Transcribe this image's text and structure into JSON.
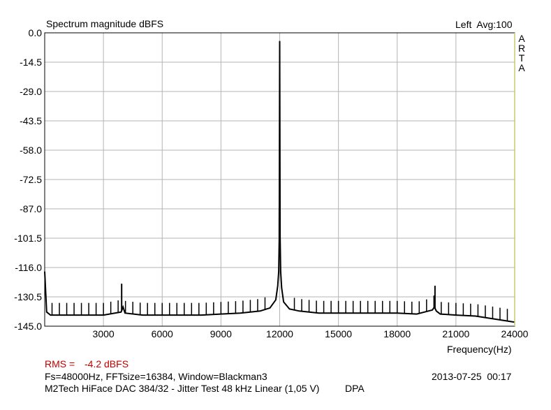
{
  "header": {
    "title": "Spectrum magnitude dBFS",
    "channel_info": "Left  Avg:100"
  },
  "brand": {
    "letters": [
      "A",
      "R",
      "T",
      "A"
    ]
  },
  "footer": {
    "rms_label": "RMS =",
    "rms_value": "-4.2 dBFS",
    "settings": "Fs=48000Hz, FFTsize=16384, Window=Blackman3",
    "datetime": "2013-07-25  00:17",
    "description": "M2Tech HiFace DAC 384/32 - Jitter Test 48 kHz Linear (1,05 V)",
    "tag": "DPA"
  },
  "colors": {
    "grid": "#b4b4b4",
    "trace": "#000000",
    "frame_right": "#c8c86e",
    "rms_red": "#c00000"
  },
  "chart_data": {
    "type": "line",
    "title": "Spectrum magnitude dBFS",
    "xlabel": "Frequency(Hz)",
    "ylabel": "",
    "xlim": [
      0,
      24000
    ],
    "ylim": [
      -145,
      0
    ],
    "x_ticks": [
      "3000",
      "6000",
      "9000",
      "12000",
      "15000",
      "18000",
      "21000",
      "24000"
    ],
    "y_ticks": [
      "0.0",
      "-14.5",
      "-29.0",
      "-43.5",
      "-58.0",
      "-72.5",
      "-87.0",
      "-101.5",
      "-116.0",
      "-130.5",
      "-145.0"
    ],
    "grid": true,
    "series": [
      {
        "x": [
          0,
          100,
          300,
          1000,
          2000,
          3000,
          3900,
          4000,
          4100,
          5000,
          6000,
          7000,
          8000,
          9000,
          10000,
          11000,
          11500,
          11800,
          11900,
          11950,
          11980,
          12000,
          12020,
          12050,
          12100,
          12200,
          12500,
          13000,
          14000,
          15000,
          16000,
          17000,
          18000,
          19000,
          19800,
          19900,
          20000,
          20200,
          21000,
          22000,
          23000,
          24000
        ],
        "y": [
          -118,
          -138,
          -139.5,
          -139.5,
          -139.5,
          -139.5,
          -138,
          -135.5,
          -138.5,
          -139.5,
          -139.5,
          -139.5,
          -139.5,
          -139,
          -138.5,
          -137.5,
          -136,
          -132,
          -125,
          -118,
          -101,
          -4,
          -101,
          -118,
          -126,
          -133,
          -136.5,
          -137.5,
          -138.5,
          -138.5,
          -138.5,
          -138.5,
          -138.5,
          -139,
          -137,
          -135.5,
          -137.5,
          -139,
          -139.5,
          -140,
          -141.5,
          -143
        ]
      }
    ],
    "peaks": [
      {
        "x": 3930,
        "y": -124
      },
      {
        "x": 11980,
        "y": -87
      },
      {
        "x": 19930,
        "y": -125
      }
    ],
    "spur_spacing_hz": 375
  }
}
